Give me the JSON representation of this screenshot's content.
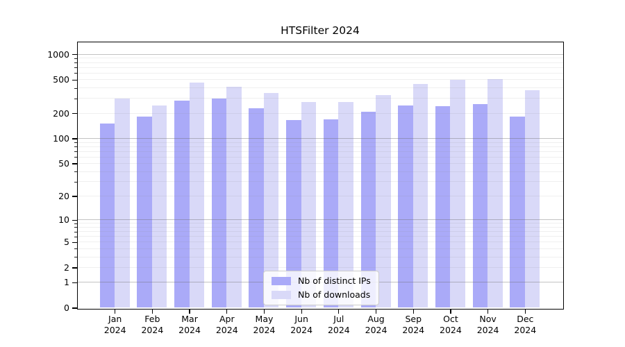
{
  "title": "HTSFilter 2024",
  "chart_data": {
    "type": "bar",
    "title": "HTSFilter 2024",
    "yscale": "log1p",
    "grid": true,
    "legend_position": "lower center",
    "categories": [
      "Jan",
      "Feb",
      "Mar",
      "Apr",
      "May",
      "Jun",
      "Jul",
      "Aug",
      "Sep",
      "Oct",
      "Nov",
      "Dec"
    ],
    "x_year": "2024",
    "series": [
      {
        "name": "Nb of distinct IPs",
        "color": "#aaaaf8",
        "values": [
          150,
          181,
          284,
          300,
          229,
          165,
          170,
          210,
          248,
          243,
          259,
          181
        ]
      },
      {
        "name": "Nb of downloads",
        "color": "#d9d9f8",
        "values": [
          300,
          248,
          466,
          414,
          347,
          274,
          273,
          328,
          441,
          501,
          511,
          373
        ]
      }
    ],
    "y_ticks": [
      0,
      1,
      2,
      5,
      10,
      20,
      50,
      100,
      200,
      500,
      1000
    ],
    "ylim": [
      0,
      1400
    ]
  }
}
